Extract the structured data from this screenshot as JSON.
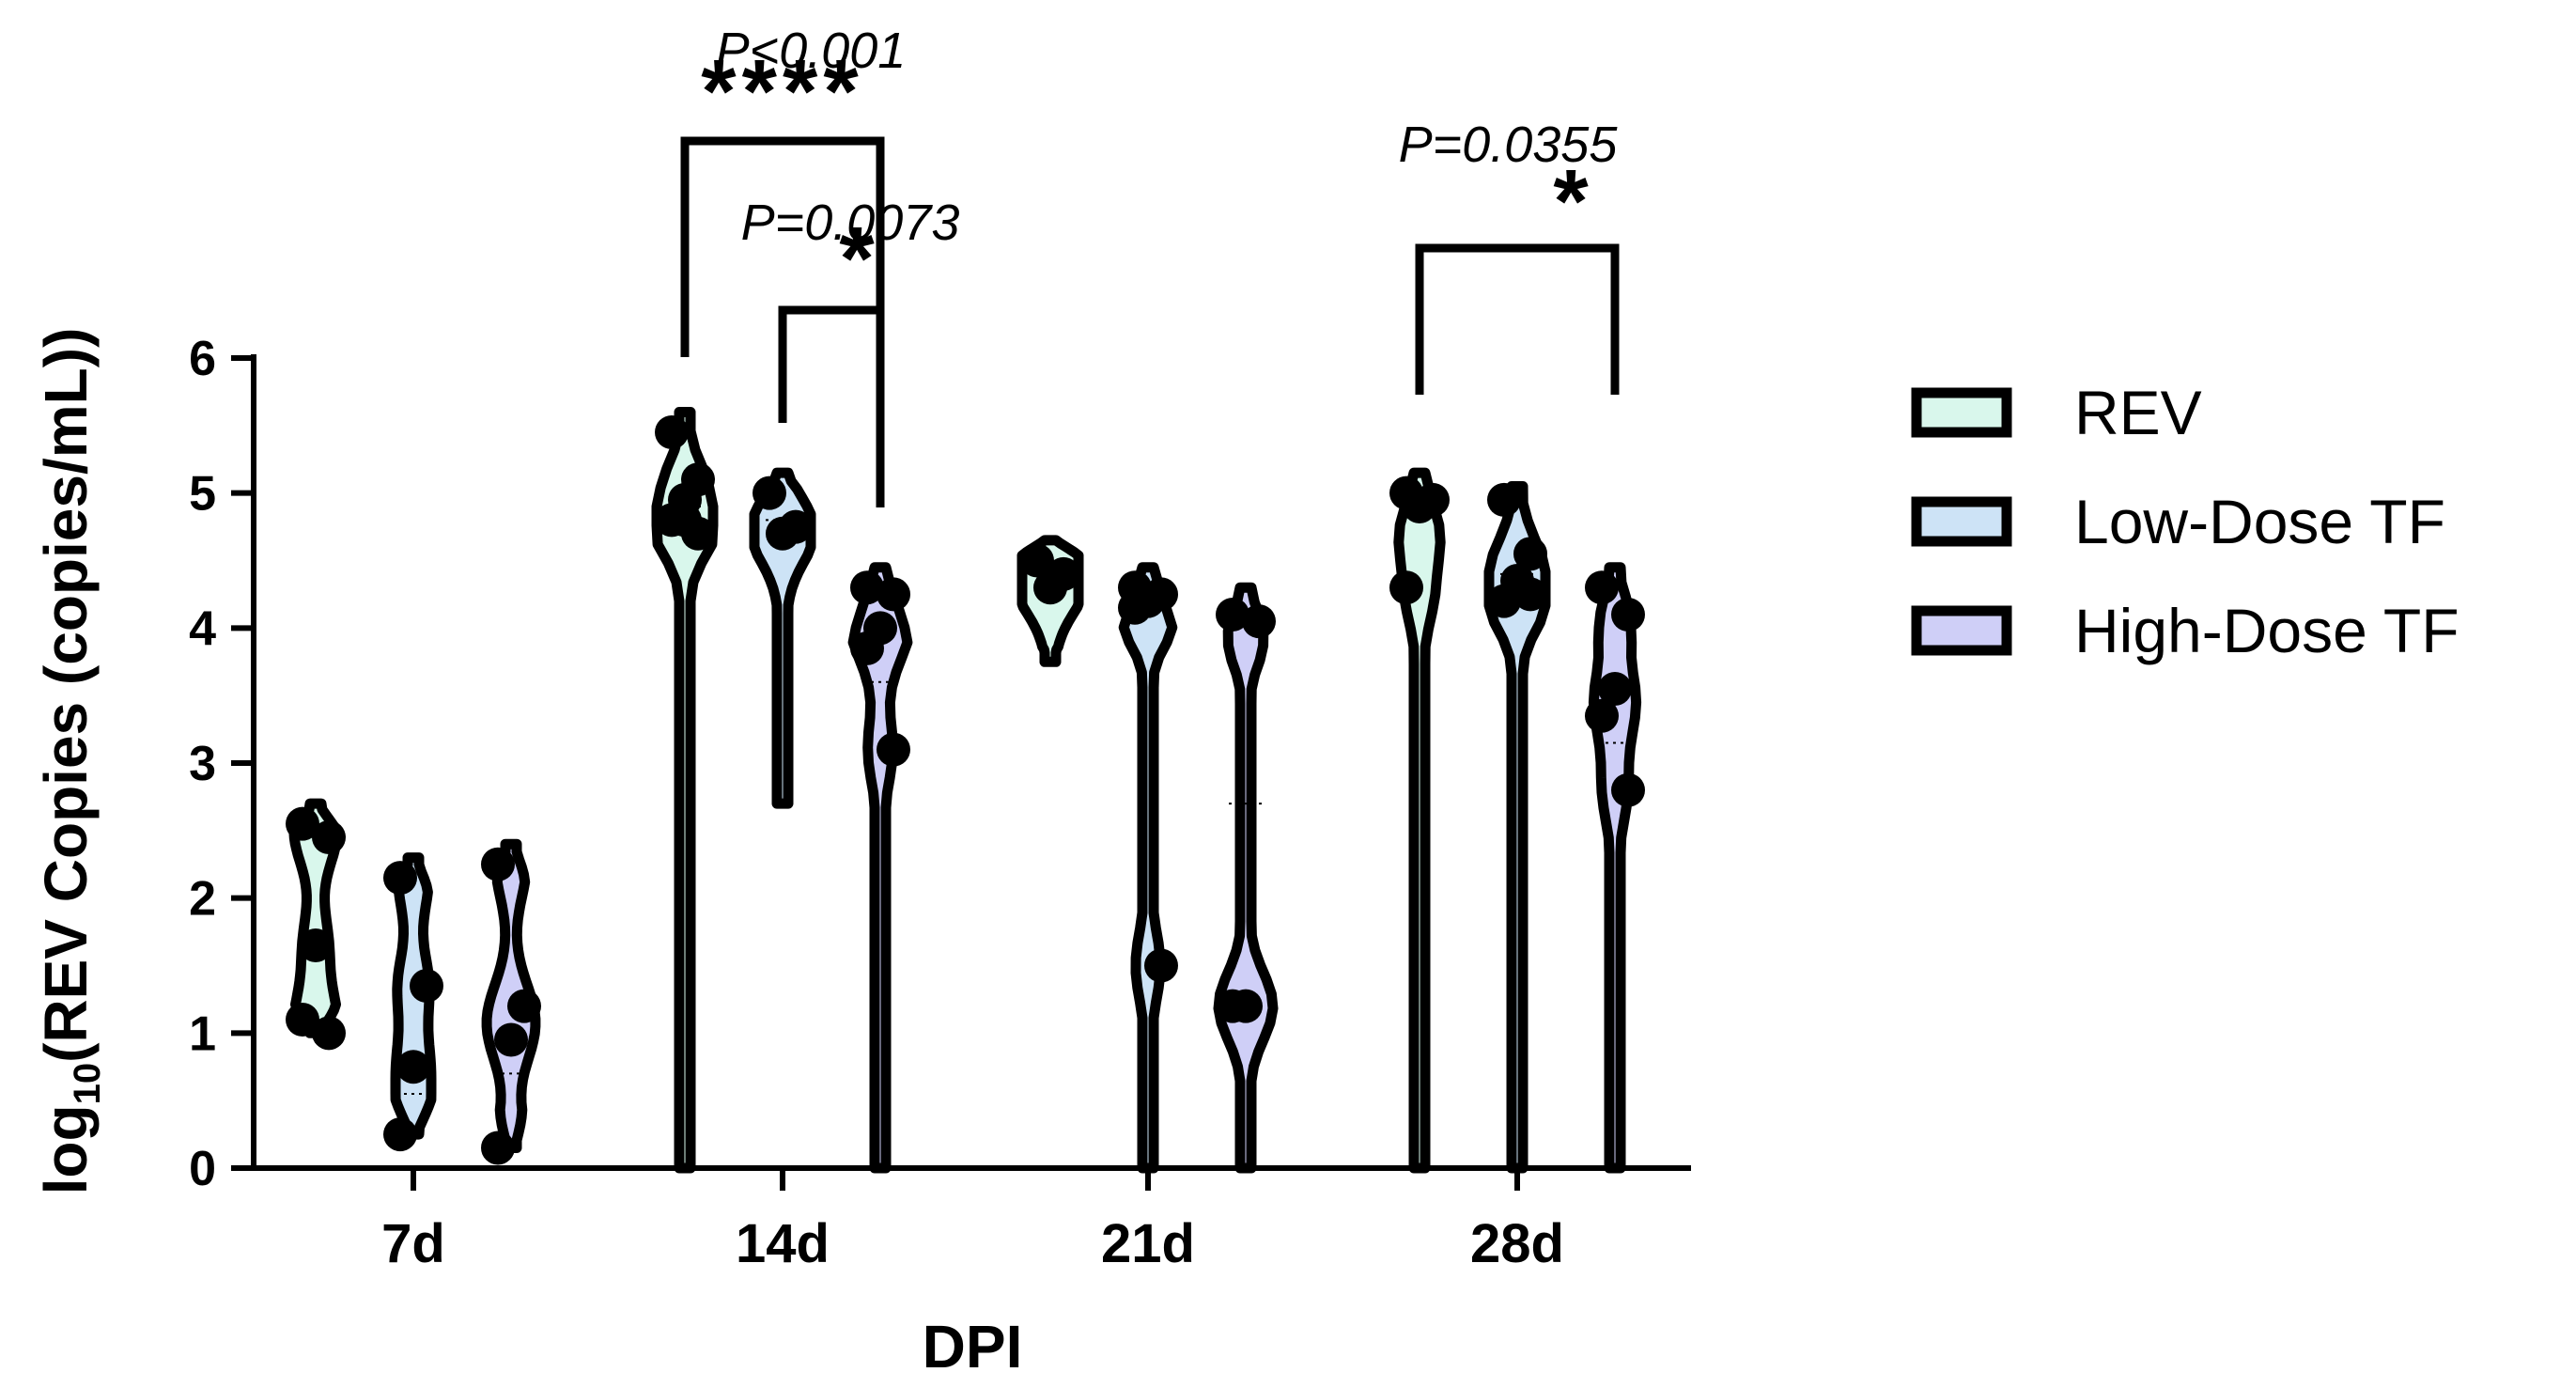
{
  "chart_data": {
    "type": "violin",
    "xlabel": "DPI",
    "ylabel_main": "log",
    "ylabel_sub": "10",
    "ylabel_rest": "(REV Copies (copies/mL))",
    "ylim": [
      0,
      6
    ],
    "yticks": [
      "0",
      "1",
      "2",
      "3",
      "4",
      "5",
      "6"
    ],
    "categories": [
      "7d",
      "14d",
      "21d",
      "28d"
    ],
    "legend_position": "right",
    "series": [
      {
        "name": "REV",
        "color": "#d9f7ec",
        "groups": [
          {
            "points": [
              2.55,
              2.45,
              1.65,
              1.1,
              1.0
            ],
            "min": 1.0,
            "max": 2.7,
            "median": 1.65,
            "mid": 2.2
          },
          {
            "points": [
              5.45,
              5.1,
              4.95,
              4.8,
              4.7,
              4.8
            ],
            "min": 0.0,
            "max": 5.6,
            "median": 4.9,
            "mid": 5.1
          },
          {
            "points": [
              4.5,
              4.4,
              4.3
            ],
            "min": 3.75,
            "max": 4.65,
            "median": 4.4,
            "mid": 4.4
          },
          {
            "points": [
              5.0,
              4.95,
              4.9,
              4.3
            ],
            "min": 0.0,
            "max": 5.15,
            "median": 4.9,
            "mid": 4.95
          }
        ]
      },
      {
        "name": "Low-Dose TF",
        "color": "#cde3f6",
        "groups": [
          {
            "points": [
              2.15,
              1.35,
              0.75,
              0.25
            ],
            "min": 0.25,
            "max": 2.3,
            "median": 0.55,
            "mid": 1.85
          },
          {
            "points": [
              5.0,
              4.75,
              4.7
            ],
            "min": 2.7,
            "max": 5.15,
            "median": 4.8,
            "mid": 4.9
          },
          {
            "points": [
              4.3,
              4.25,
              4.2,
              4.15,
              1.5
            ],
            "min": 0.0,
            "max": 4.45,
            "median": 4.2,
            "mid": 4.1
          },
          {
            "points": [
              4.95,
              4.55,
              4.35,
              4.2,
              4.25
            ],
            "min": 0.0,
            "max": 5.05,
            "median": 4.4,
            "mid": 4.5
          }
        ]
      },
      {
        "name": "High-Dose TF",
        "color": "#cfcff7",
        "groups": [
          {
            "points": [
              2.25,
              1.2,
              0.95,
              0.15
            ],
            "min": 0.15,
            "max": 2.4,
            "median": 0.7,
            "mid": 1.7
          },
          {
            "points": [
              4.3,
              4.25,
              4.0,
              3.85,
              3.1
            ],
            "min": 0.0,
            "max": 4.45,
            "median": 3.6,
            "mid": 3.9
          },
          {
            "points": [
              4.1,
              4.05,
              1.2,
              1.2
            ],
            "min": 0.0,
            "max": 4.3,
            "median": 2.7,
            "mid": 3.7
          },
          {
            "points": [
              4.3,
              4.1,
              3.55,
              3.35,
              2.8
            ],
            "min": 0.0,
            "max": 4.45,
            "median": 3.15,
            "mid": 3.6
          }
        ]
      }
    ],
    "annotations": [
      {
        "p_text": "P<0.001",
        "stars": "****",
        "from": [
          1,
          0
        ],
        "to": [
          1,
          2
        ]
      },
      {
        "p_text": "P=0.0073",
        "stars": "*",
        "from": [
          1,
          1
        ],
        "to": [
          1,
          2
        ]
      },
      {
        "p_text": "P=0.0355",
        "stars": "*",
        "from": [
          3,
          0
        ],
        "to": [
          3,
          2
        ]
      }
    ]
  }
}
